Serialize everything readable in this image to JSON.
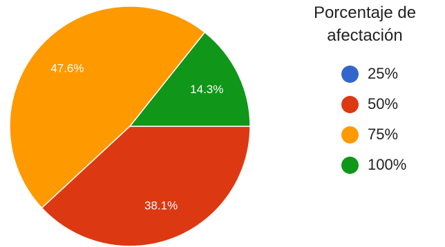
{
  "chart_data": {
    "type": "pie",
    "legend_title": "Porcentaje de afectación",
    "legend_title_lines": [
      "Porcentaje de",
      "afectación"
    ],
    "legend_position": "right",
    "categories": [
      "25%",
      "50%",
      "75%",
      "100%"
    ],
    "values": [
      0,
      38.1,
      47.6,
      14.3
    ],
    "slice_labels": [
      "",
      "38.1%",
      "47.6%",
      "14.3%"
    ],
    "colors": [
      "#3366cc",
      "#dc3912",
      "#ff9900",
      "#109618"
    ]
  }
}
